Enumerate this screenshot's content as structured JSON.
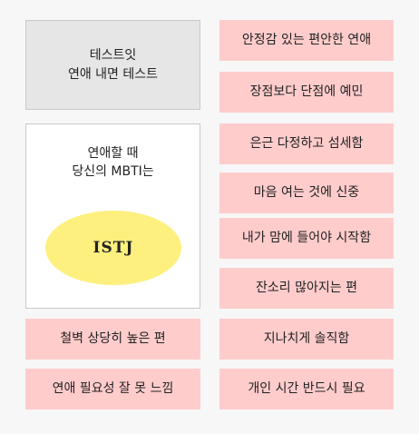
{
  "header": {
    "line1": "테스트잇",
    "line2": "연애 내면 테스트"
  },
  "result": {
    "question_line1": "연애할 때",
    "question_line2": "당신의 MBTI는",
    "type": "ISTJ",
    "ellipse_color": "#fdf07e"
  },
  "traits_right": [
    "안정감 있는 편안한 연애",
    "장점보다 단점에 예민",
    "은근 다정하고 섬세함",
    "마음 여는 것에 신중",
    "내가 맘에 들어야 시작함",
    "잔소리 많아지는 편",
    "지나치게 솔직함",
    "개인 시간 반드시 필요"
  ],
  "traits_left": [
    "철벽 상당히 높은 편",
    "연애 필요성 잘 못 느낌"
  ],
  "colors": {
    "trait_bg": "#ffcccc",
    "header_bg": "#e6e6e6",
    "page_bg": "#f7f7f7"
  }
}
